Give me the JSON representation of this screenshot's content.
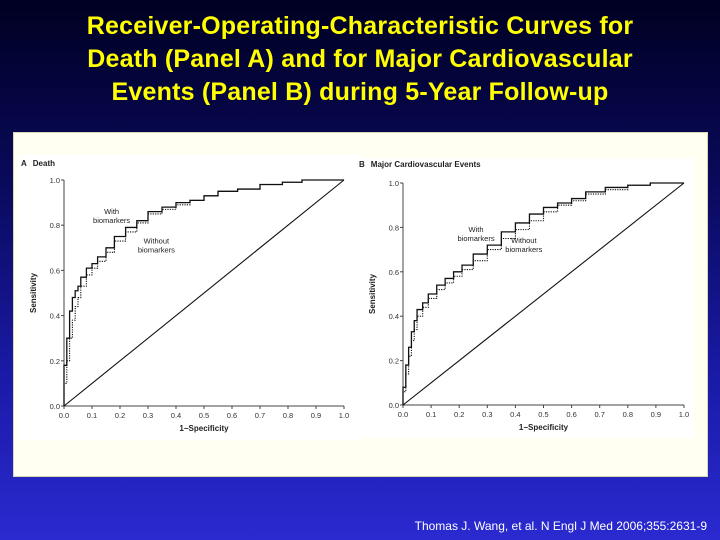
{
  "title": {
    "line1": "Receiver-Operating-Characteristic Curves for",
    "line2": "Death (Panel A) and for Major Cardiovascular",
    "line3": "Events (Panel B) during 5-Year Follow-up"
  },
  "citation": "Thomas J. Wang, et al. N Engl J Med 2006;355:2631-9",
  "colors": {
    "title": "#ffff00",
    "background_top": "#000022",
    "background_bottom": "#2a2ad0",
    "figure_background": "#fffff2",
    "curve": "#111111"
  },
  "chart_data": [
    {
      "type": "line",
      "panel_letter": "A",
      "title": "Death",
      "xlabel": "1−Specificity",
      "ylabel": "Sensitivity",
      "xlim": [
        0,
        1
      ],
      "ylim": [
        0,
        1
      ],
      "x_ticks": [
        "0.0",
        "0.1",
        "0.2",
        "0.3",
        "0.4",
        "0.5",
        "0.6",
        "0.7",
        "0.8",
        "0.9",
        "1.0"
      ],
      "y_ticks": [
        "0.0",
        "0.2",
        "0.4",
        "0.6",
        "0.8",
        "1.0"
      ],
      "grid": false,
      "annotations": [
        {
          "text": [
            "With",
            "biomarkers"
          ],
          "x": 0.17,
          "y": 0.85
        },
        {
          "text": [
            "Without",
            "biomarkers"
          ],
          "x": 0.33,
          "y": 0.72
        }
      ],
      "series": [
        {
          "name": "With biomarkers",
          "style": "solid",
          "x": [
            0,
            0.01,
            0.02,
            0.03,
            0.04,
            0.05,
            0.06,
            0.08,
            0.1,
            0.12,
            0.15,
            0.18,
            0.22,
            0.26,
            0.3,
            0.35,
            0.4,
            0.45,
            0.5,
            0.55,
            0.62,
            0.7,
            0.78,
            0.85,
            0.9,
            0.95,
            1.0
          ],
          "y": [
            0,
            0.18,
            0.3,
            0.42,
            0.48,
            0.51,
            0.53,
            0.57,
            0.61,
            0.63,
            0.66,
            0.7,
            0.75,
            0.79,
            0.82,
            0.86,
            0.88,
            0.9,
            0.91,
            0.93,
            0.95,
            0.96,
            0.98,
            0.99,
            1.0,
            1.0,
            1.0
          ]
        },
        {
          "name": "Without biomarkers",
          "style": "dotted",
          "x": [
            0,
            0.01,
            0.02,
            0.03,
            0.04,
            0.05,
            0.06,
            0.08,
            0.1,
            0.12,
            0.15,
            0.18,
            0.22,
            0.26,
            0.3,
            0.35,
            0.4,
            0.45,
            0.5,
            0.55,
            0.62,
            0.7,
            0.78,
            0.85,
            0.9,
            0.95,
            1.0
          ],
          "y": [
            0,
            0.1,
            0.2,
            0.3,
            0.38,
            0.44,
            0.48,
            0.53,
            0.58,
            0.61,
            0.64,
            0.68,
            0.73,
            0.77,
            0.81,
            0.85,
            0.87,
            0.89,
            0.91,
            0.93,
            0.95,
            0.96,
            0.98,
            0.99,
            1.0,
            1.0,
            1.0
          ]
        },
        {
          "name": "Reference",
          "style": "diagonal",
          "x": [
            0,
            1
          ],
          "y": [
            0,
            1
          ]
        }
      ]
    },
    {
      "type": "line",
      "panel_letter": "B",
      "title": "Major Cardiovascular Events",
      "xlabel": "1−Specificity",
      "ylabel": "Sensitivity",
      "xlim": [
        0,
        1
      ],
      "ylim": [
        0,
        1
      ],
      "x_ticks": [
        "0.0",
        "0.1",
        "0.2",
        "0.3",
        "0.4",
        "0.5",
        "0.6",
        "0.7",
        "0.8",
        "0.9",
        "1.0"
      ],
      "y_ticks": [
        "0.0",
        "0.2",
        "0.4",
        "0.6",
        "0.8",
        "1.0"
      ],
      "grid": false,
      "annotations": [
        {
          "text": [
            "With",
            "biomarkers"
          ],
          "x": 0.26,
          "y": 0.78
        },
        {
          "text": [
            "Without",
            "biomarkers"
          ],
          "x": 0.43,
          "y": 0.73
        }
      ],
      "series": [
        {
          "name": "With biomarkers",
          "style": "solid",
          "x": [
            0,
            0.01,
            0.02,
            0.03,
            0.04,
            0.05,
            0.07,
            0.09,
            0.12,
            0.15,
            0.18,
            0.21,
            0.25,
            0.3,
            0.35,
            0.4,
            0.45,
            0.5,
            0.55,
            0.6,
            0.65,
            0.72,
            0.8,
            0.88,
            0.95,
            1.0
          ],
          "y": [
            0,
            0.08,
            0.18,
            0.26,
            0.33,
            0.38,
            0.43,
            0.46,
            0.5,
            0.54,
            0.57,
            0.6,
            0.63,
            0.68,
            0.72,
            0.78,
            0.82,
            0.86,
            0.89,
            0.91,
            0.93,
            0.96,
            0.98,
            0.99,
            1.0,
            1.0
          ]
        },
        {
          "name": "Without biomarkers",
          "style": "dotted",
          "x": [
            0,
            0.01,
            0.02,
            0.03,
            0.04,
            0.05,
            0.07,
            0.09,
            0.12,
            0.15,
            0.18,
            0.21,
            0.25,
            0.3,
            0.35,
            0.4,
            0.45,
            0.5,
            0.55,
            0.6,
            0.65,
            0.72,
            0.8,
            0.88,
            0.95,
            1.0
          ],
          "y": [
            0,
            0.06,
            0.14,
            0.22,
            0.29,
            0.34,
            0.4,
            0.44,
            0.48,
            0.52,
            0.55,
            0.58,
            0.61,
            0.65,
            0.7,
            0.75,
            0.79,
            0.83,
            0.87,
            0.9,
            0.92,
            0.95,
            0.97,
            0.99,
            1.0,
            1.0
          ]
        },
        {
          "name": "Reference",
          "style": "diagonal",
          "x": [
            0,
            1
          ],
          "y": [
            0,
            1
          ]
        }
      ]
    }
  ]
}
